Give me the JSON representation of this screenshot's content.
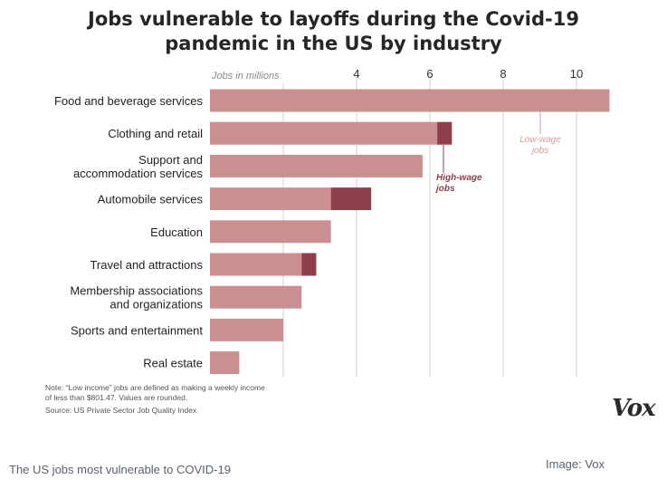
{
  "chart_data": {
    "type": "bar",
    "orientation": "horizontal",
    "stacked": true,
    "title": "Jobs vulnerable to layoffs during the Covid-19\npandemic in the US by industry",
    "axis_label": "Jobs in millions",
    "x_ticks": [
      4,
      6,
      8,
      10
    ],
    "xlim": [
      0,
      11
    ],
    "grid": true,
    "categories": [
      "Food and beverage services",
      "Clothing and retail",
      "Support and\naccommodation services",
      "Automobile services",
      "Education",
      "Travel and attractions",
      "Membership associations\nand organizations",
      "Sports and entertainment",
      "Real estate"
    ],
    "series": [
      {
        "name": "Low-wage jobs",
        "values": [
          10.9,
          6.2,
          5.8,
          3.3,
          3.3,
          2.5,
          2.5,
          2.0,
          0.8
        ]
      },
      {
        "name": "High-wage jobs",
        "values": [
          0,
          0.4,
          0,
          1.1,
          0,
          0.4,
          0,
          0,
          0
        ]
      }
    ],
    "annotations": {
      "low_wage": "Low-wage\njobs",
      "high_wage": "High-wage\njobs"
    }
  },
  "colors": {
    "low_wage": "#c98f91",
    "high_wage": "#8d3f4b",
    "grid": "#d0d0d0",
    "low_label": "#d49a9e",
    "high_label": "#8d3f4b"
  },
  "notes": {
    "line1": "Note: “Low income” jobs are defined as making a weekly income",
    "line2": "of less than $801.47. Values are rounded.",
    "line3": "Source: US Private Sector Job Quality Index"
  },
  "logo": "Vox",
  "caption": "The US jobs most vulnerable to COVID-19",
  "credit": "Image: Vox"
}
